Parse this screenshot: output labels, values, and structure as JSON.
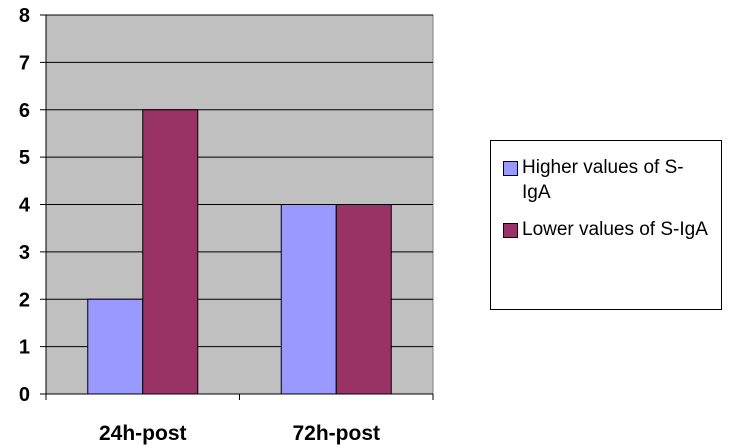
{
  "chart_data": {
    "type": "bar",
    "categories": [
      "24h-post",
      "72h-post"
    ],
    "series": [
      {
        "name": "Higher values of S-IgA",
        "values": [
          2,
          4
        ],
        "color": "#9999ff"
      },
      {
        "name": "Lower values of S-IgA",
        "values": [
          6,
          4
        ],
        "color": "#993366"
      }
    ],
    "ylim": [
      0,
      8
    ],
    "yticks": [
      "0",
      "1",
      "2",
      "3",
      "4",
      "5",
      "6",
      "7",
      "8"
    ],
    "plot_background": "#c0c0c0",
    "grid": true,
    "legend_position": "right"
  }
}
